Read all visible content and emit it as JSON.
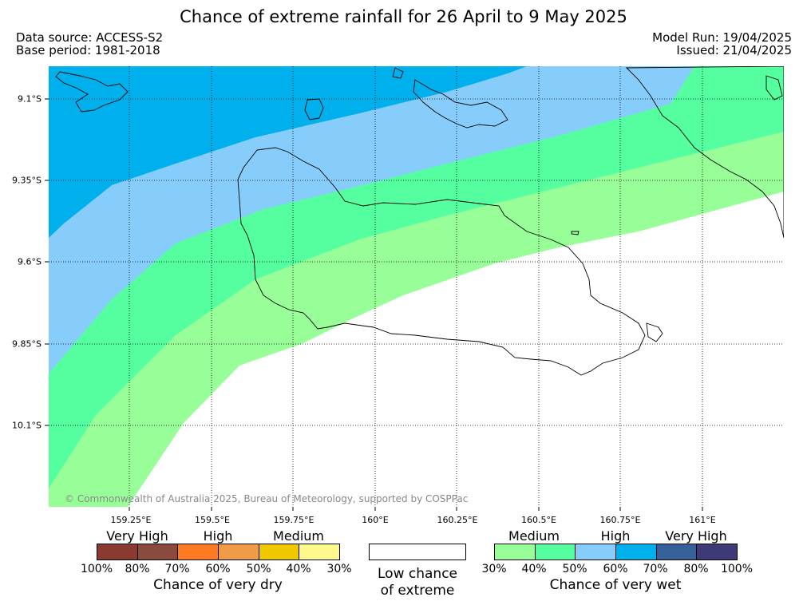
{
  "title": "Chance of extreme rainfall for 26 April to 9 May 2025",
  "data_source": "Data source: ACCESS-S2",
  "base_period": "Base period: 1981-2018",
  "model_run": "Model Run: 19/04/2025",
  "issued": "Issued: 21/04/2025",
  "copyright": "© Commonwealth of Australia 2025, Bureau of Meteorology, supported by COSPPac",
  "map": {
    "lon_labels": [
      "159.25°E",
      "159.5°E",
      "159.75°E",
      "160°E",
      "160.25°E",
      "160.5°E",
      "160.75°E",
      "161°E"
    ],
    "lat_labels": [
      "9.1°S",
      "9.35°S",
      "9.6°S",
      "9.85°S",
      "10.1°S"
    ],
    "band_colors": {
      "wet_60_70": "#00b0ec",
      "wet_50_60": "#87cdfc",
      "wet_40_50": "#55ffa0",
      "wet_30_40": "#98ff98"
    }
  },
  "legend": {
    "dry": {
      "categories": [
        "Very High",
        "High",
        "Medium"
      ],
      "colors": [
        "#8b3a32",
        "#8b4a3e",
        "#fe7b24",
        "#ef9b48",
        "#f0c800",
        "#fef98d"
      ],
      "ticks": [
        "100%",
        "80%",
        "70%",
        "60%",
        "50%",
        "40%",
        "30%"
      ],
      "label": "Chance of very dry"
    },
    "low": {
      "line1": "Low chance",
      "line2": "of extreme"
    },
    "wet": {
      "categories": [
        "Medium",
        "High",
        "Very High"
      ],
      "colors": [
        "#98ff98",
        "#55ffa0",
        "#87cdfc",
        "#00b0ec",
        "#35609a",
        "#3e3a78"
      ],
      "ticks": [
        "30%",
        "40%",
        "50%",
        "60%",
        "70%",
        "80%",
        "100%"
      ],
      "label": "Chance of very wet"
    }
  }
}
